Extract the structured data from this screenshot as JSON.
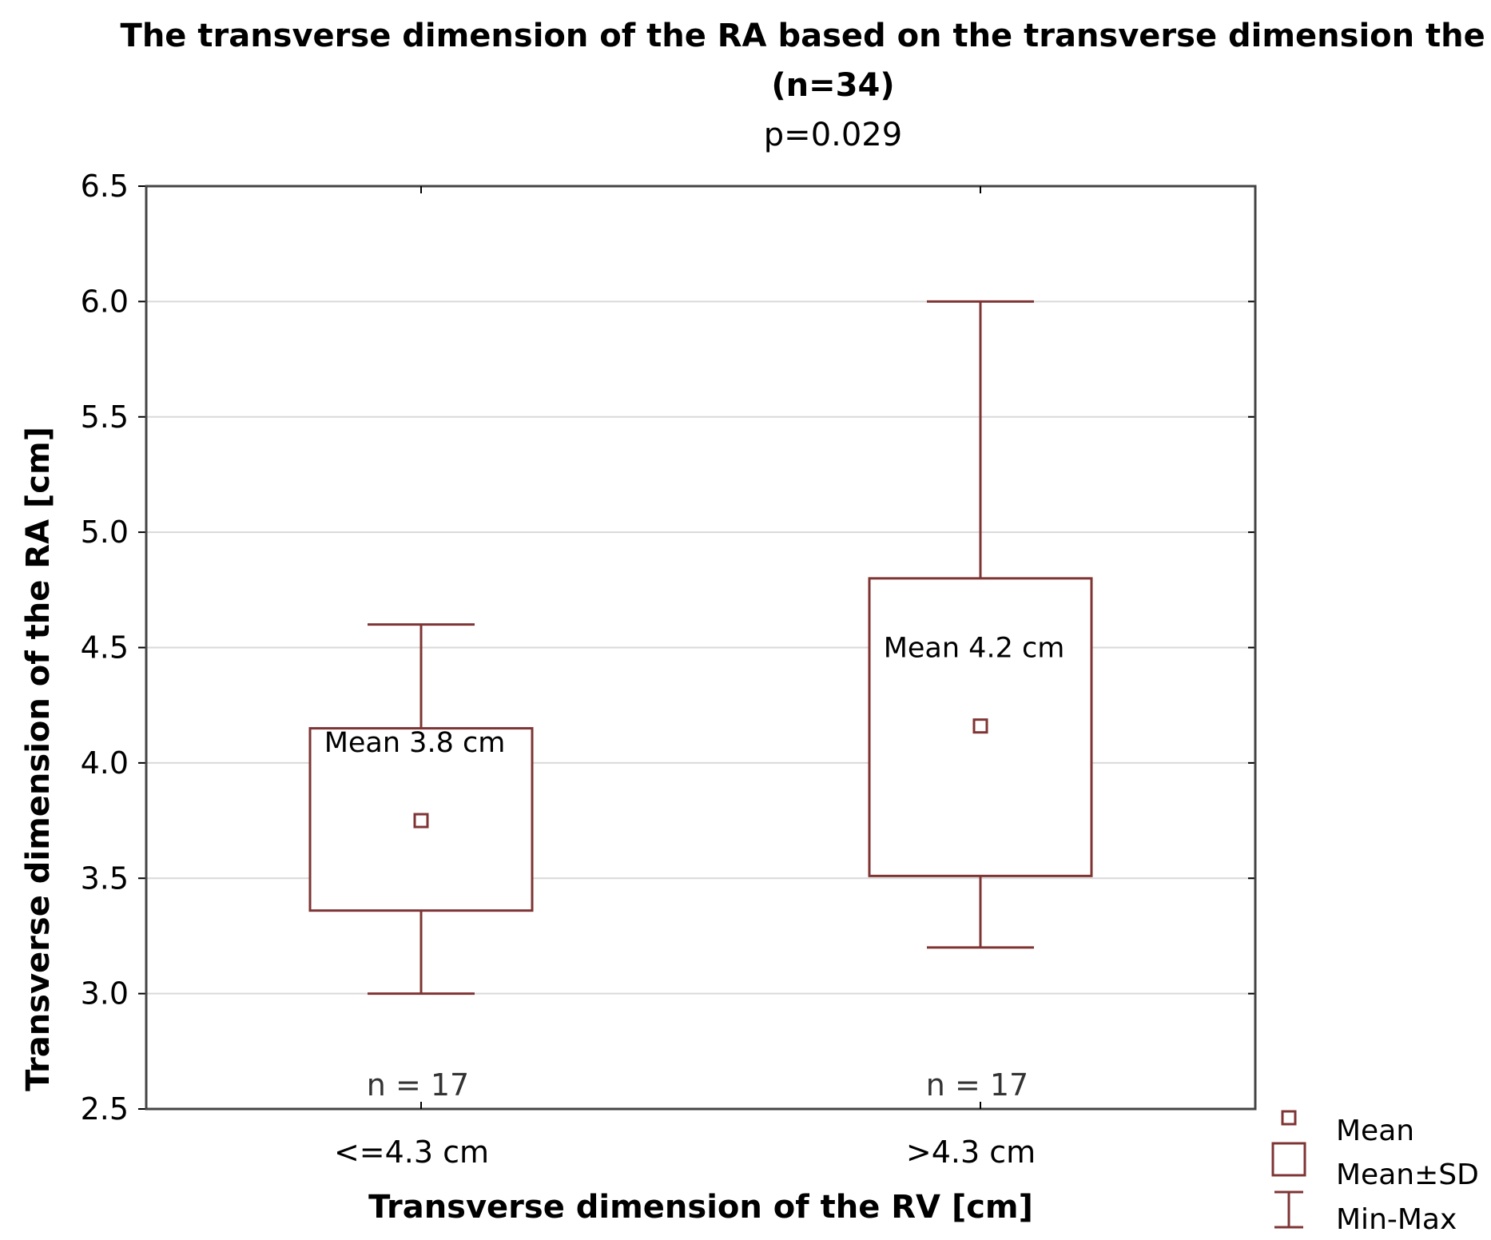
{
  "chart_data": {
    "type": "box",
    "title_line1": "The transverse dimension of the RA based on the transverse dimension the RV",
    "title_line2": "(n=34)",
    "subtitle": "p=0.029",
    "xlabel": "Transverse dimension of the RV [cm]",
    "ylabel": "Transverse dimension of the RA [cm]",
    "ylim": [
      2.5,
      6.5
    ],
    "yticks": [
      "2.5",
      "3.0",
      "3.5",
      "4.0",
      "4.5",
      "5.0",
      "5.5",
      "6.0",
      "6.5"
    ],
    "grid": true,
    "legend_position": "bottom-right",
    "categories": [
      "<=4.3 cm",
      ">4.3 cm"
    ],
    "groups": [
      {
        "category": "<=4.3 cm",
        "mean": 3.75,
        "sd_low": 3.36,
        "sd_high": 4.15,
        "min": 3.0,
        "max": 4.6,
        "mean_label": "Mean 3.8 cm",
        "n_label": "n = 17"
      },
      {
        "category": ">4.3 cm",
        "mean": 4.16,
        "sd_low": 3.51,
        "sd_high": 4.8,
        "min": 3.2,
        "max": 6.0,
        "mean_label": "Mean 4.2 cm",
        "n_label": "n = 17"
      }
    ],
    "legend": [
      "Mean",
      "Mean±SD",
      "Min-Max"
    ],
    "color": "#7f3434"
  }
}
